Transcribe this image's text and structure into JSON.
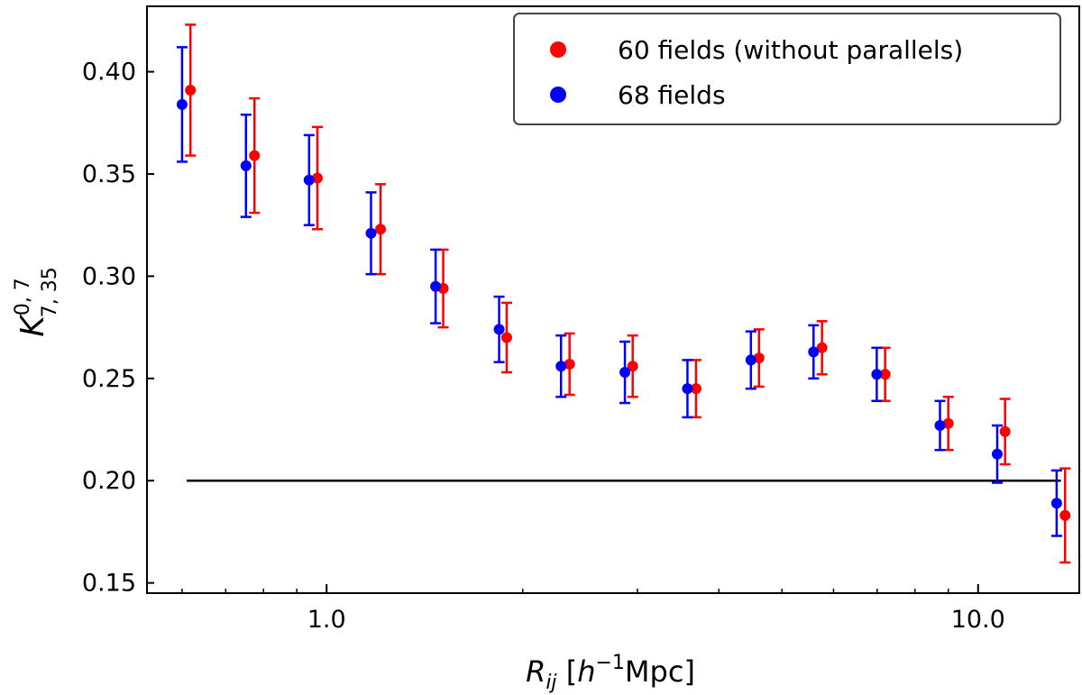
{
  "chart_data": {
    "type": "scatter",
    "title": "",
    "xlabel": "R_ij [h^-1 Mpc]",
    "xlabel_parts": {
      "var": "R",
      "sub": "ij",
      "open": " [",
      "h": "h",
      "sup": "−1",
      "unit": "Mpc]"
    },
    "ylabel": "K^{0,7}_{7,35}",
    "ylabel_parts": {
      "var": "K",
      "sup": "0, 7",
      "sub": "7, 35"
    },
    "xscale": "log",
    "xlim": [
      0.53,
      14.3
    ],
    "ylim": [
      0.145,
      0.432
    ],
    "x_ticks": [
      {
        "value": 1.0,
        "label": "1.0"
      },
      {
        "value": 10.0,
        "label": "10.0"
      }
    ],
    "y_ticks": [
      {
        "value": 0.15,
        "label": "0.15"
      },
      {
        "value": 0.2,
        "label": "0.20"
      },
      {
        "value": 0.25,
        "label": "0.25"
      },
      {
        "value": 0.3,
        "label": "0.30"
      },
      {
        "value": 0.35,
        "label": "0.35"
      },
      {
        "value": 0.4,
        "label": "0.40"
      }
    ],
    "reference_line": {
      "y": 0.2,
      "x_from": 0.61,
      "x_to": 13.4,
      "color": "#000000"
    },
    "legend_position": "top-right",
    "series": [
      {
        "name": "60 fields (without parallels)",
        "color": "#ff0000",
        "x": [
          0.618,
          0.775,
          0.968,
          1.21,
          1.51,
          1.89,
          2.36,
          2.95,
          3.69,
          4.61,
          5.76,
          7.2,
          9.0,
          11.0,
          13.6
        ],
        "y": [
          0.391,
          0.359,
          0.348,
          0.323,
          0.294,
          0.27,
          0.257,
          0.256,
          0.245,
          0.26,
          0.265,
          0.252,
          0.228,
          0.224,
          0.183
        ],
        "yerr": [
          0.032,
          0.028,
          0.025,
          0.022,
          0.019,
          0.017,
          0.015,
          0.015,
          0.014,
          0.014,
          0.013,
          0.013,
          0.013,
          0.016,
          0.023
        ]
      },
      {
        "name": "68 fields",
        "color": "#0000ff",
        "x": [
          0.6,
          0.752,
          0.94,
          1.17,
          1.47,
          1.84,
          2.29,
          2.87,
          3.58,
          4.48,
          5.59,
          6.99,
          8.74,
          10.7,
          13.2
        ],
        "y": [
          0.384,
          0.354,
          0.347,
          0.321,
          0.295,
          0.274,
          0.256,
          0.253,
          0.245,
          0.259,
          0.263,
          0.252,
          0.227,
          0.213,
          0.189
        ],
        "yerr": [
          0.028,
          0.025,
          0.022,
          0.02,
          0.018,
          0.016,
          0.015,
          0.015,
          0.014,
          0.014,
          0.013,
          0.013,
          0.012,
          0.014,
          0.016
        ]
      }
    ]
  }
}
